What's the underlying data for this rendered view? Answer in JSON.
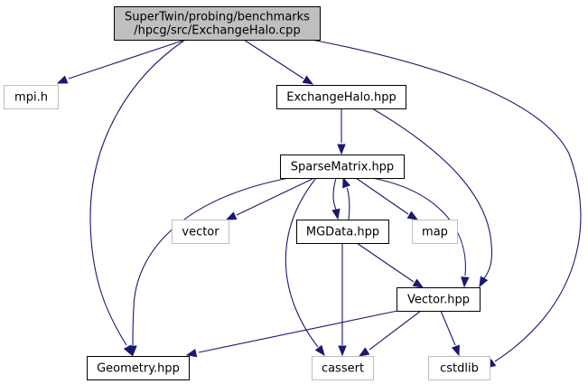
{
  "diagram": {
    "type": "include-dependency-graph",
    "colors": {
      "edge": "#191970",
      "root_fill": "#bfbfbf",
      "local_border": "#000000",
      "system_border": "#bfbfbf"
    },
    "nodes": [
      {
        "id": "root",
        "kind": "root",
        "lines": [
          "SuperTwin/probing/benchmarks",
          "/hpcg/src/ExchangeHalo.cpp"
        ]
      },
      {
        "id": "mpi",
        "kind": "system",
        "lines": [
          "mpi.h"
        ]
      },
      {
        "id": "exchangehalo",
        "kind": "local",
        "lines": [
          "ExchangeHalo.hpp"
        ]
      },
      {
        "id": "sparsematrix",
        "kind": "local",
        "lines": [
          "SparseMatrix.hpp"
        ]
      },
      {
        "id": "vector_std",
        "kind": "system",
        "lines": [
          "vector"
        ]
      },
      {
        "id": "mgdata",
        "kind": "local",
        "lines": [
          "MGData.hpp"
        ]
      },
      {
        "id": "map",
        "kind": "system",
        "lines": [
          "map"
        ]
      },
      {
        "id": "vectorhpp",
        "kind": "local",
        "lines": [
          "Vector.hpp"
        ]
      },
      {
        "id": "geometry",
        "kind": "local",
        "lines": [
          "Geometry.hpp"
        ]
      },
      {
        "id": "cassert",
        "kind": "system",
        "lines": [
          "cassert"
        ]
      },
      {
        "id": "cstdlib",
        "kind": "system",
        "lines": [
          "cstdlib"
        ]
      }
    ],
    "edges": [
      {
        "from": "root",
        "to": "mpi"
      },
      {
        "from": "root",
        "to": "exchangehalo"
      },
      {
        "from": "root",
        "to": "geometry"
      },
      {
        "from": "root",
        "to": "cstdlib"
      },
      {
        "from": "exchangehalo",
        "to": "sparsematrix"
      },
      {
        "from": "exchangehalo",
        "to": "vectorhpp"
      },
      {
        "from": "sparsematrix",
        "to": "geometry"
      },
      {
        "from": "sparsematrix",
        "to": "vector_std"
      },
      {
        "from": "sparsematrix",
        "to": "mgdata"
      },
      {
        "from": "sparsematrix",
        "to": "map"
      },
      {
        "from": "sparsematrix",
        "to": "vectorhpp"
      },
      {
        "from": "sparsematrix",
        "to": "cassert"
      },
      {
        "from": "mgdata",
        "to": "sparsematrix"
      },
      {
        "from": "mgdata",
        "to": "vectorhpp"
      },
      {
        "from": "mgdata",
        "to": "cassert"
      },
      {
        "from": "vectorhpp",
        "to": "geometry"
      },
      {
        "from": "vectorhpp",
        "to": "cassert"
      },
      {
        "from": "vectorhpp",
        "to": "cstdlib"
      }
    ]
  }
}
